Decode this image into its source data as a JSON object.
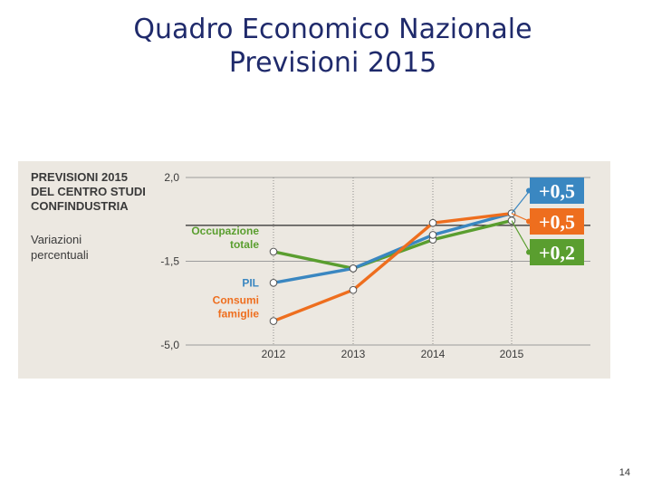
{
  "slide": {
    "title_line1": "Quadro Economico Nazionale",
    "title_line2": "Previsioni 2015",
    "page_number": "14"
  },
  "chart_data": {
    "type": "line",
    "title_lines": [
      "PREVISIONI 2015",
      "DEL CENTRO STUDI",
      "CONFINDUSTRIA"
    ],
    "subtitle_lines": [
      "Variazioni",
      "percentuali"
    ],
    "categories": [
      "2012",
      "2013",
      "2014",
      "2015"
    ],
    "yticks": [
      "2,0",
      "-1,5",
      "-5,0"
    ],
    "ytick_values": [
      2.0,
      -1.5,
      -5.0
    ],
    "ylim": [
      -5.0,
      2.0
    ],
    "reference_line": 0.0,
    "series": [
      {
        "name": "Occupazione totale",
        "label_lines": [
          "Occupazione",
          "totale"
        ],
        "color": "#5a9e2f",
        "values": [
          -1.1,
          -1.8,
          -0.6,
          0.2
        ],
        "final_label": "+0,2"
      },
      {
        "name": "PIL",
        "label_lines": [
          "PIL"
        ],
        "color": "#3a87c1",
        "values": [
          -2.4,
          -1.8,
          -0.4,
          0.5
        ],
        "final_label": "+0,5"
      },
      {
        "name": "Consumi famiglie",
        "label_lines": [
          "Consumi",
          "famiglie"
        ],
        "color": "#ee6e1e",
        "values": [
          -4.0,
          -2.7,
          0.1,
          0.5
        ],
        "final_label": "+0,5"
      }
    ],
    "badge_order": [
      1,
      2,
      0
    ]
  }
}
